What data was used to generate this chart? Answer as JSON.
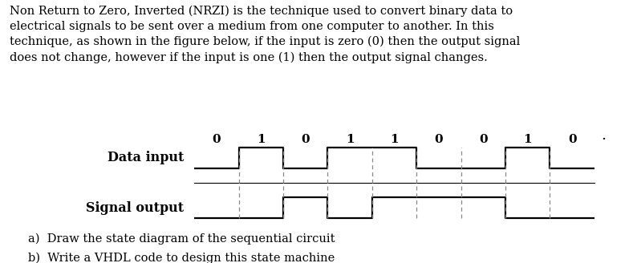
{
  "title_text": "Non Return to Zero, Inverted (NRZI) is the technique used to convert binary data to\nelectrical signals to be sent over a medium from one computer to another. In this\ntechnique, as shown in the figure below, if the input is zero (0) then the output signal\ndoes not change, however if the input is one (1) then the output signal changes.",
  "data_input_label": "Data input",
  "signal_output_label": "Signal output",
  "data_bits": [
    "0",
    "1",
    "0",
    "1",
    "1",
    "0",
    "0",
    "1",
    "0"
  ],
  "question_a": "a)  Draw the state diagram of the sequential circuit",
  "question_b": "b)  Write a VHDL code to design this state machine",
  "bg_color": "#ffffff",
  "text_color": "#000000",
  "waveform_color": "#000000",
  "dashed_color": "#888888",
  "body_fontsize": 10.5,
  "label_fontsize": 11.5,
  "bit_fontsize": 11,
  "question_fontsize": 10.5,
  "data_input_x": [
    0,
    1,
    1,
    2,
    2,
    3,
    3,
    4,
    4,
    5,
    5,
    6,
    6,
    7,
    7,
    8,
    8,
    9
  ],
  "data_input_y": [
    0,
    0,
    1,
    1,
    0,
    0,
    1,
    1,
    1,
    1,
    0,
    0,
    0,
    0,
    1,
    1,
    0,
    0
  ],
  "signal_output_x": [
    0,
    1,
    1,
    2,
    2,
    3,
    3,
    4,
    4,
    5,
    5,
    6,
    6,
    7,
    7,
    8,
    8,
    9
  ],
  "signal_output_y": [
    0,
    0,
    0,
    0,
    1,
    1,
    0,
    0,
    1,
    1,
    1,
    1,
    1,
    1,
    0,
    0,
    0,
    0
  ],
  "num_bits": 9
}
